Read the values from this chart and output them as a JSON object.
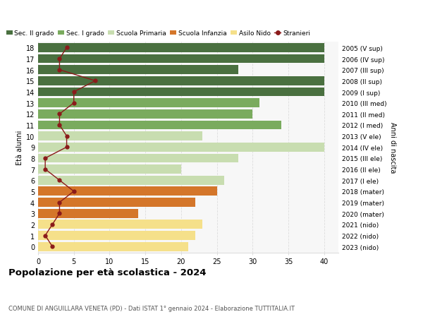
{
  "ages": [
    18,
    17,
    16,
    15,
    14,
    13,
    12,
    11,
    10,
    9,
    8,
    7,
    6,
    5,
    4,
    3,
    2,
    1,
    0
  ],
  "years": [
    "2005 (V sup)",
    "2006 (IV sup)",
    "2007 (III sup)",
    "2008 (II sup)",
    "2009 (I sup)",
    "2010 (III med)",
    "2011 (II med)",
    "2012 (I med)",
    "2013 (V ele)",
    "2014 (IV ele)",
    "2015 (III ele)",
    "2016 (II ele)",
    "2017 (I ele)",
    "2018 (mater)",
    "2019 (mater)",
    "2020 (mater)",
    "2021 (nido)",
    "2022 (nido)",
    "2023 (nido)"
  ],
  "bar_values": [
    40,
    40,
    28,
    40,
    40,
    31,
    30,
    34,
    23,
    40,
    28,
    20,
    26,
    25,
    22,
    14,
    23,
    22,
    21
  ],
  "bar_colors": [
    "#4a7040",
    "#4a7040",
    "#4a7040",
    "#4a7040",
    "#4a7040",
    "#7aab5e",
    "#7aab5e",
    "#7aab5e",
    "#c8ddb0",
    "#c8ddb0",
    "#c8ddb0",
    "#c8ddb0",
    "#c8ddb0",
    "#d4762a",
    "#d4762a",
    "#d4762a",
    "#f5e08a",
    "#f5e08a",
    "#f5e08a"
  ],
  "stranieri_values": [
    4,
    3,
    3,
    8,
    5,
    5,
    3,
    3,
    4,
    4,
    1,
    1,
    3,
    5,
    3,
    3,
    2,
    1,
    2
  ],
  "stranieri_color": "#8b1a1a",
  "legend_labels": [
    "Sec. II grado",
    "Sec. I grado",
    "Scuola Primaria",
    "Scuola Infanzia",
    "Asilo Nido",
    "Stranieri"
  ],
  "legend_colors": [
    "#4a7040",
    "#7aab5e",
    "#c8ddb0",
    "#d4762a",
    "#f5e08a",
    "#8b1a1a"
  ],
  "title": "Popolazione per età scolastica - 2024",
  "subtitle": "COMUNE DI ANGUILLARA VENETA (PD) - Dati ISTAT 1° gennaio 2024 - Elaborazione TUTTITALIA.IT",
  "ylabel_left": "Età alunni",
  "ylabel_right": "Anni di nascita",
  "xlim": [
    0,
    42
  ],
  "ylim_low": -0.55,
  "ylim_high": 18.55,
  "background_color": "#ffffff",
  "plot_bg_color": "#f7f7f7",
  "grid_color": "#dddddd"
}
